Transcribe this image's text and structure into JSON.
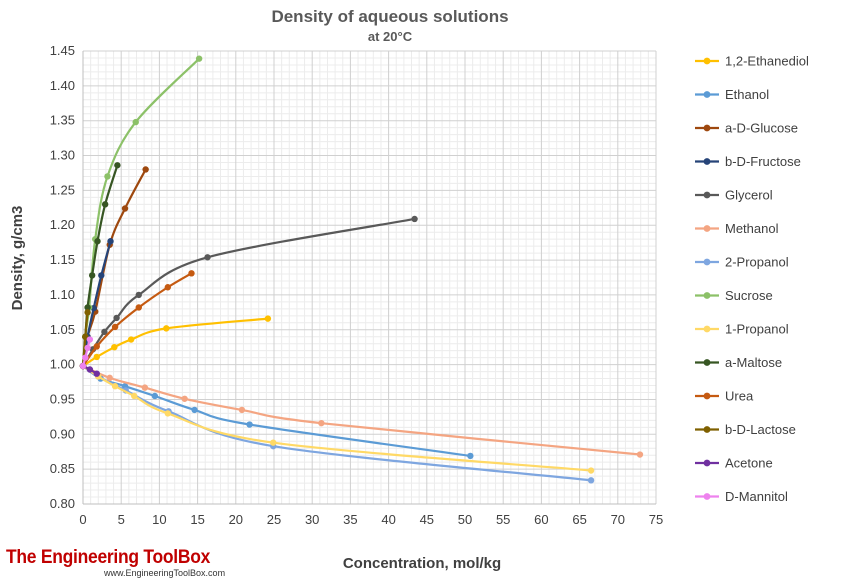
{
  "chart_data": {
    "type": "line",
    "title": "Density of aqueous solutions",
    "subtitle": "at 20°C",
    "xlabel": "Concentration, mol/kg",
    "ylabel": "Density, g/cm3",
    "xlim": [
      0,
      75
    ],
    "ylim": [
      0.8,
      1.45
    ],
    "xticks": [
      "0",
      "5",
      "10",
      "15",
      "20",
      "25",
      "30",
      "35",
      "40",
      "45",
      "50",
      "55",
      "60",
      "65",
      "70",
      "75"
    ],
    "yticks": [
      "0.80",
      "0.85",
      "0.90",
      "0.95",
      "1.00",
      "1.05",
      "1.10",
      "1.15",
      "1.20",
      "1.25",
      "1.30",
      "1.35",
      "1.40",
      "1.45"
    ],
    "grid": true,
    "legend_position": "right",
    "series": [
      {
        "name": "1,2-Ethanediol",
        "color": "#FFC000",
        "points": [
          [
            0,
            0.998
          ],
          [
            1.8,
            1.011
          ],
          [
            4.1,
            1.025
          ],
          [
            6.3,
            1.036
          ],
          [
            10.9,
            1.052
          ],
          [
            24.2,
            1.066
          ]
        ]
      },
      {
        "name": "Ethanol",
        "color": "#5B9BD5",
        "points": [
          [
            0,
            0.998
          ],
          [
            2.3,
            0.98
          ],
          [
            5.5,
            0.969
          ],
          [
            9.4,
            0.955
          ],
          [
            14.6,
            0.935
          ],
          [
            21.8,
            0.914
          ],
          [
            50.7,
            0.869
          ]
        ]
      },
      {
        "name": "a-D-Glucose",
        "color": "#9E480E",
        "points": [
          [
            0,
            0.998
          ],
          [
            0.6,
            1.04
          ],
          [
            1.6,
            1.076
          ],
          [
            3.5,
            1.172
          ],
          [
            5.5,
            1.224
          ],
          [
            8.2,
            1.28
          ]
        ]
      },
      {
        "name": "b-D-Fructose",
        "color": "#264478",
        "points": [
          [
            0,
            0.998
          ],
          [
            0.6,
            1.04
          ],
          [
            1.4,
            1.081
          ],
          [
            2.4,
            1.128
          ],
          [
            3.6,
            1.177
          ]
        ]
      },
      {
        "name": "Glycerol",
        "color": "#595959",
        "points": [
          [
            0,
            0.998
          ],
          [
            1.3,
            1.022
          ],
          [
            2.8,
            1.047
          ],
          [
            4.4,
            1.067
          ],
          [
            7.3,
            1.1
          ],
          [
            16.3,
            1.154
          ],
          [
            43.4,
            1.209
          ]
        ]
      },
      {
        "name": "Methanol",
        "color": "#F4A582",
        "points": [
          [
            0,
            0.998
          ],
          [
            3.5,
            0.981
          ],
          [
            8.1,
            0.967
          ],
          [
            13.3,
            0.951
          ],
          [
            20.8,
            0.935
          ],
          [
            31.2,
            0.916
          ],
          [
            72.9,
            0.871
          ]
        ]
      },
      {
        "name": "2-Propanol",
        "color": "#7EA6E0",
        "points": [
          [
            0,
            0.998
          ],
          [
            2.0,
            0.983
          ],
          [
            5.6,
            0.963
          ],
          [
            11.2,
            0.933
          ],
          [
            24.9,
            0.883
          ],
          [
            66.5,
            0.834
          ]
        ]
      },
      {
        "name": "Sucrose",
        "color": "#8CC168",
        "points": [
          [
            0,
            0.998
          ],
          [
            0.3,
            1.04
          ],
          [
            0.8,
            1.082
          ],
          [
            1.6,
            1.18
          ],
          [
            3.2,
            1.27
          ],
          [
            6.9,
            1.348
          ],
          [
            15.2,
            1.439
          ]
        ]
      },
      {
        "name": "1-Propanol",
        "color": "#FFD966",
        "points": [
          [
            0,
            0.998
          ],
          [
            2.0,
            0.983
          ],
          [
            4.2,
            0.969
          ],
          [
            6.7,
            0.955
          ],
          [
            11.1,
            0.93
          ],
          [
            24.9,
            0.888
          ],
          [
            66.5,
            0.848
          ]
        ]
      },
      {
        "name": "a-Maltose",
        "color": "#375623",
        "points": [
          [
            0,
            0.998
          ],
          [
            0.3,
            1.04
          ],
          [
            0.6,
            1.082
          ],
          [
            1.2,
            1.128
          ],
          [
            1.9,
            1.177
          ],
          [
            2.9,
            1.23
          ],
          [
            4.5,
            1.286
          ]
        ]
      },
      {
        "name": "Urea",
        "color": "#C55A11",
        "points": [
          [
            0,
            0.998
          ],
          [
            1.8,
            1.026
          ],
          [
            4.2,
            1.054
          ],
          [
            7.3,
            1.082
          ],
          [
            11.1,
            1.111
          ],
          [
            14.2,
            1.131
          ]
        ]
      },
      {
        "name": "b-D-Lactose",
        "color": "#7F6000",
        "points": [
          [
            0,
            0.998
          ],
          [
            0.3,
            1.04
          ],
          [
            0.6,
            1.075
          ]
        ]
      },
      {
        "name": "Acetone",
        "color": "#7030A0",
        "points": [
          [
            0,
            0.998
          ],
          [
            0.9,
            0.993
          ],
          [
            1.8,
            0.987
          ]
        ]
      },
      {
        "name": "D-Mannitol",
        "color": "#EE82EE",
        "points": [
          [
            0,
            0.998
          ],
          [
            0.3,
            1.01
          ],
          [
            0.6,
            1.024
          ],
          [
            0.9,
            1.036
          ]
        ]
      }
    ]
  },
  "branding": {
    "name": "The Engineering ToolBox",
    "url": "www.EngineeringToolBox.com"
  }
}
